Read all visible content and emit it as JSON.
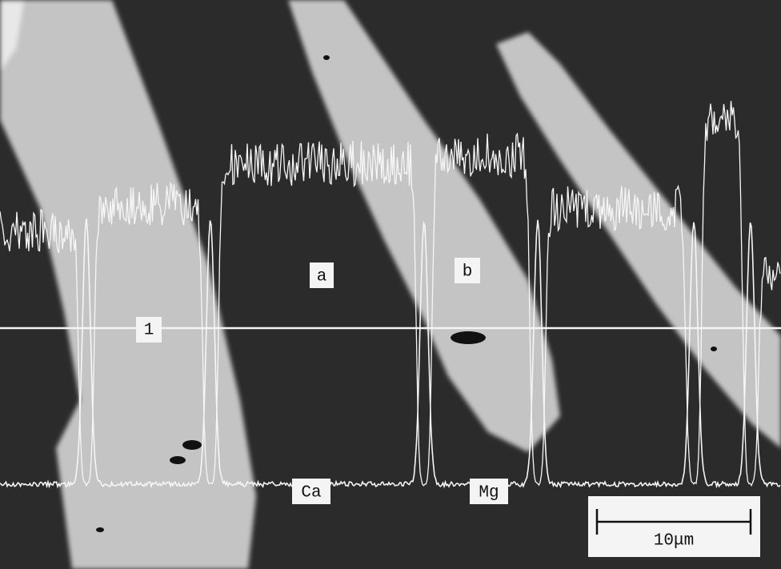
{
  "labels": {
    "region_a": "a",
    "region_b": "b",
    "scan_line": "1",
    "trace_ca": "Ca",
    "trace_mg": "Mg"
  },
  "scale_bar": "10μm"
}
